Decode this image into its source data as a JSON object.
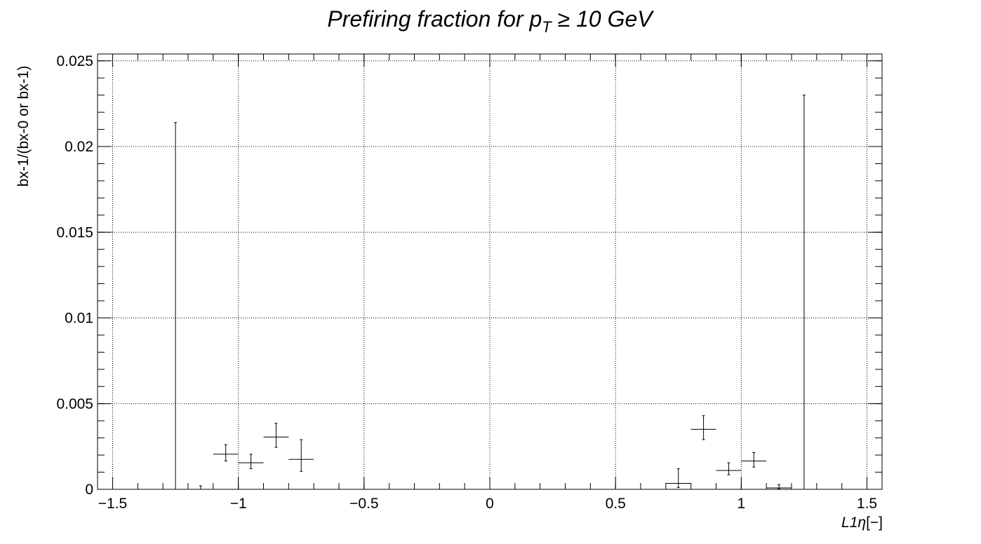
{
  "chart_data": {
    "type": "scatter",
    "title": "Prefiring fraction for p",
    "title_subscript": "T",
    "title_suffix": " ≥ 10 GeV",
    "xlabel_main": "L1",
    "xlabel_symbol": "η",
    "xlabel_unit": "[−]",
    "ylabel": "bx-1/(bx-0 or bx-1)",
    "xlim": [
      -1.56,
      1.56
    ],
    "ylim": [
      0,
      0.0254
    ],
    "grid": true,
    "x_ticks": [
      -1.5,
      -1,
      -0.5,
      0,
      0.5,
      1,
      1.5
    ],
    "x_tick_labels": [
      "−1.5",
      "−1",
      "−0.5",
      "0",
      "0.5",
      "1",
      "1.5"
    ],
    "y_ticks": [
      0,
      0.005,
      0.01,
      0.015,
      0.02,
      0.025
    ],
    "y_tick_labels": [
      "0",
      "0.005",
      "0.01",
      "0.015",
      "0.02",
      "0.025"
    ],
    "points": [
      {
        "x": -1.25,
        "xerr": 0.0,
        "y": 0.0,
        "yerr_lo": 0.0,
        "yerr_hi": 0.0214
      },
      {
        "x": -1.15,
        "xerr": 0.0,
        "y": 0.0,
        "yerr_lo": 0.0,
        "yerr_hi": 0.0002
      },
      {
        "x": -1.05,
        "xerr": 0.05,
        "y": 0.00205,
        "yerr_lo": 0.0004,
        "yerr_hi": 0.00055
      },
      {
        "x": -0.95,
        "xerr": 0.05,
        "y": 0.00155,
        "yerr_lo": 0.00035,
        "yerr_hi": 0.0005
      },
      {
        "x": -0.85,
        "xerr": 0.05,
        "y": 0.00305,
        "yerr_lo": 0.0006,
        "yerr_hi": 0.0008
      },
      {
        "x": -0.75,
        "xerr": 0.05,
        "y": 0.00175,
        "yerr_lo": 0.0007,
        "yerr_hi": 0.00115
      },
      {
        "x": 0.75,
        "xerr": 0.05,
        "y": 0.00035,
        "yerr_lo": 0.00025,
        "yerr_hi": 0.00085
      },
      {
        "x": 0.85,
        "xerr": 0.05,
        "y": 0.0035,
        "yerr_lo": 0.0006,
        "yerr_hi": 0.0008
      },
      {
        "x": 0.95,
        "xerr": 0.05,
        "y": 0.0011,
        "yerr_lo": 0.00025,
        "yerr_hi": 0.00045
      },
      {
        "x": 1.05,
        "xerr": 0.05,
        "y": 0.00165,
        "yerr_lo": 0.00035,
        "yerr_hi": 0.0005
      },
      {
        "x": 1.15,
        "xerr": 0.05,
        "y": 8e-05,
        "yerr_lo": 5e-05,
        "yerr_hi": 0.0002
      },
      {
        "x": 1.25,
        "xerr": 0.0,
        "y": 0.0,
        "yerr_lo": 0.0,
        "yerr_hi": 0.023
      }
    ]
  }
}
